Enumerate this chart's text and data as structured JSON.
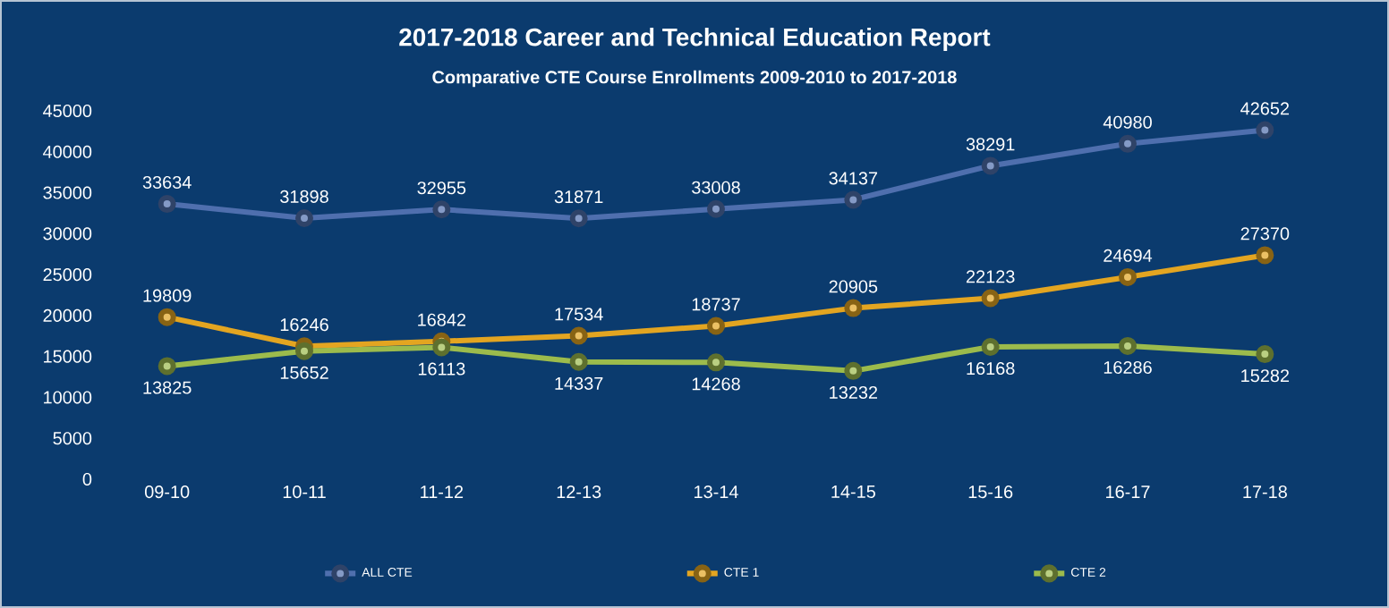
{
  "chart_data": {
    "type": "line",
    "title": "2017-2018 Career and Technical Education Report",
    "subtitle": "Comparative CTE Course Enrollments 2009-2010 to 2017-2018",
    "categories": [
      "09-10",
      "10-11",
      "11-12",
      "12-13",
      "13-14",
      "14-15",
      "15-16",
      "16-17",
      "17-18"
    ],
    "series": [
      {
        "name": "ALL CTE",
        "color": "#4f6fae",
        "values": [
          33634,
          31898,
          32955,
          31871,
          33008,
          34137,
          38291,
          40980,
          42652
        ]
      },
      {
        "name": "CTE 1",
        "color": "#e3a521",
        "values": [
          19809,
          16246,
          16842,
          17534,
          18737,
          20905,
          22123,
          24694,
          27370
        ]
      },
      {
        "name": "CTE 2",
        "color": "#9cbb4c",
        "values": [
          13825,
          15652,
          16113,
          14337,
          14268,
          13232,
          16168,
          16286,
          15282
        ]
      }
    ],
    "ylim": [
      0,
      45000
    ],
    "yticks": [
      0,
      5000,
      10000,
      15000,
      20000,
      25000,
      30000,
      35000,
      40000,
      45000
    ],
    "data_labels": true,
    "legend": "bottom",
    "marker": "circle",
    "line_style": "solid",
    "grid": false
  }
}
